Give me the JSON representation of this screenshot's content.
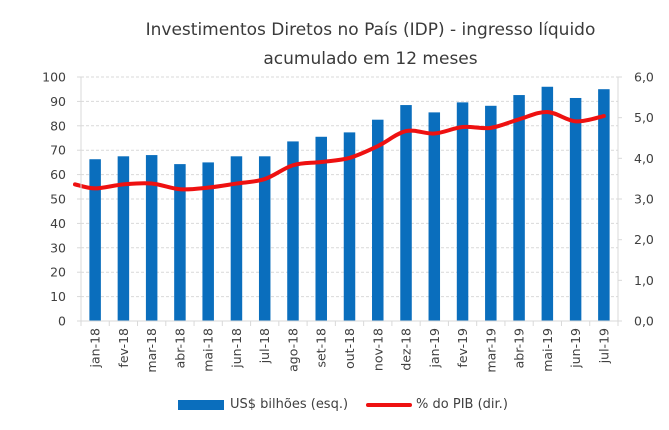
{
  "chart_data": {
    "type": "bar",
    "combo": "bar+line (dual axis)",
    "title": "Investimentos Diretos no País (IDP) - ingresso líquido acumulado em 12 meses",
    "title_lines": [
      "Investimentos Diretos no País (IDP) - ingresso líquido",
      "acumulado em 12 meses"
    ],
    "categories": [
      "jan-18",
      "fev-18",
      "mar-18",
      "abr-18",
      "mai-18",
      "jun-18",
      "jul-18",
      "ago-18",
      "set-18",
      "out-18",
      "nov-18",
      "dez-18",
      "jan-19",
      "fev-19",
      "mar-19",
      "abr-19",
      "mai-19",
      "jun-19",
      "jul-19"
    ],
    "series": [
      {
        "name": "US$ bilhões (esq.)",
        "type": "bar",
        "axis": "left",
        "color": "#0A6EBD",
        "values": [
          66.3,
          67.5,
          68.0,
          64.3,
          65.0,
          67.5,
          67.5,
          73.6,
          75.5,
          77.3,
          82.5,
          88.5,
          85.5,
          89.6,
          88.2,
          92.6,
          96.0,
          91.4,
          95.0
        ]
      },
      {
        "name": "% do PIB (dir.)",
        "type": "line",
        "axis": "right",
        "color": "#EE1111",
        "values": [
          3.26,
          3.36,
          3.38,
          3.24,
          3.28,
          3.38,
          3.49,
          3.83,
          3.91,
          4.01,
          4.3,
          4.67,
          4.61,
          4.77,
          4.75,
          4.96,
          5.14,
          4.91,
          5.04
        ]
      }
    ],
    "y_left": {
      "label": "",
      "ylim": [
        0,
        100
      ],
      "ticks": [
        "0",
        "10",
        "20",
        "30",
        "40",
        "50",
        "60",
        "70",
        "80",
        "90",
        "100"
      ]
    },
    "y_right": {
      "label": "",
      "ylim": [
        0,
        6
      ],
      "ticks": [
        "0,0",
        "1,0",
        "2,0",
        "3,0",
        "4,0",
        "5,0",
        "6,0"
      ]
    },
    "xlabel": "",
    "grid": true,
    "legend": {
      "position": "bottom",
      "entries": [
        "US$ bilhões (esq.)",
        "% do PIB (dir.)"
      ]
    }
  }
}
